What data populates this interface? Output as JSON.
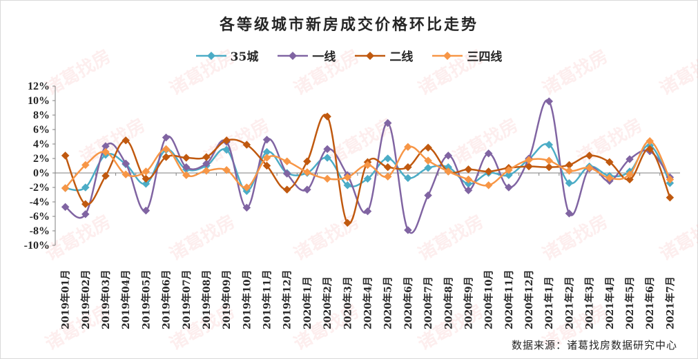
{
  "chart_data": {
    "type": "line",
    "title": "各等级城市新房成交价格环比走势",
    "source": "数据来源：诸葛找房数据研究中心",
    "watermark": "诸葛找房",
    "legend_position": "top",
    "grid": false,
    "ylim": [
      -10,
      12
    ],
    "yticks": [
      "12%",
      "10%",
      "8%",
      "6%",
      "4%",
      "2%",
      "0%",
      "-2%",
      "-4%",
      "-6%",
      "-8%",
      "-10%"
    ],
    "categories": [
      "2019年01月",
      "2019年02月",
      "2019年03月",
      "2019年04月",
      "2019年05月",
      "2019年06月",
      "2019年07月",
      "2019年08月",
      "2019年09月",
      "2019年10月",
      "2019年11月",
      "2019年12月",
      "2020年1月",
      "2020年2月",
      "2020年3月",
      "2020年4月",
      "2020年5月",
      "2020年6月",
      "2020年7月",
      "2020年8月",
      "2020年9月",
      "2020年10月",
      "2020年11月",
      "2020年12月",
      "2021年1月",
      "2021年2月",
      "2021年3月",
      "2021年4月",
      "2021年5月",
      "2021年6月",
      "2021年7月"
    ],
    "series": [
      {
        "name": "35城",
        "color": "#4bacc6",
        "marker": "diamond",
        "values": [
          -2.1,
          -2.0,
          2.5,
          1.2,
          -1.5,
          3.2,
          0.5,
          1.0,
          3.2,
          -2.5,
          2.9,
          0.0,
          0.0,
          2.1,
          -1.7,
          -0.8,
          2.0,
          -0.7,
          0.7,
          0.8,
          -1.5,
          0.0,
          -0.3,
          1.9,
          3.9,
          -1.4,
          0.9,
          -0.4,
          0.2,
          3.8,
          -1.4
        ]
      },
      {
        "name": "一线",
        "color": "#8064a2",
        "marker": "diamond",
        "values": [
          -4.7,
          -5.7,
          3.7,
          1.3,
          -5.2,
          4.9,
          0.8,
          1.3,
          4.3,
          -4.8,
          4.6,
          -0.1,
          -2.3,
          3.3,
          -0.3,
          -5.3,
          6.9,
          -7.9,
          -3.1,
          2.4,
          -2.4,
          2.7,
          -2.0,
          2.0,
          9.9,
          -5.6,
          0.6,
          -1.1,
          1.9,
          3.0,
          -0.6
        ]
      },
      {
        "name": "二线",
        "color": "#c0590f",
        "marker": "diamond",
        "values": [
          2.4,
          -4.3,
          -0.4,
          4.5,
          -0.8,
          2.2,
          2.1,
          2.2,
          4.5,
          3.9,
          1.0,
          -2.3,
          1.6,
          7.8,
          -6.9,
          1.5,
          0.8,
          0.8,
          3.5,
          0.2,
          0.5,
          0.2,
          0.7,
          0.9,
          0.8,
          1.1,
          2.4,
          1.5,
          -0.9,
          3.3,
          -3.4
        ]
      },
      {
        "name": "三四线",
        "color": "#f79646",
        "marker": "diamond",
        "values": [
          -2.1,
          1.1,
          2.9,
          -0.2,
          0.2,
          3.3,
          -0.3,
          0.3,
          0.4,
          -2.0,
          2.1,
          1.6,
          0.1,
          -0.8,
          -0.6,
          1.1,
          -0.5,
          3.6,
          1.7,
          0.2,
          -0.9,
          -1.7,
          0.4,
          1.8,
          1.7,
          0.3,
          0.7,
          -0.7,
          -0.2,
          4.4,
          -0.9
        ]
      }
    ]
  }
}
